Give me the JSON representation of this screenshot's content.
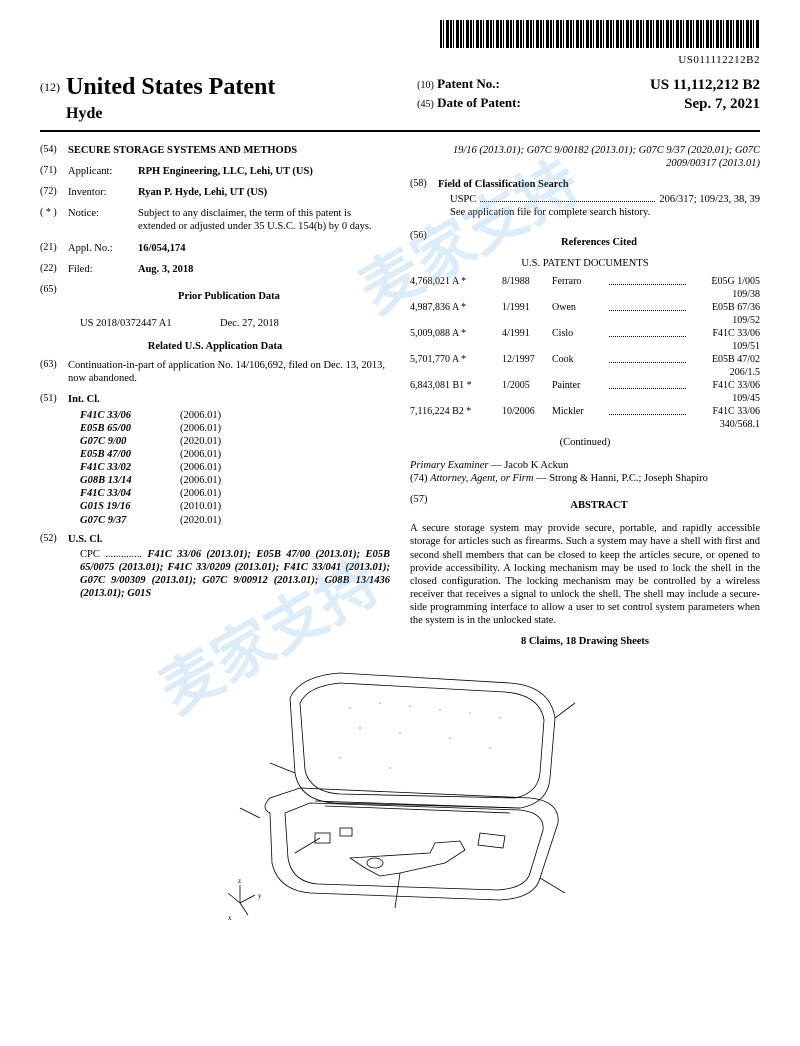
{
  "barcode_number": "US011112212B2",
  "header": {
    "country_num": "(12)",
    "country": "United States Patent",
    "inventor_short": "Hyde",
    "patent_no_num": "(10)",
    "patent_no_label": "Patent No.:",
    "patent_no": "US 11,112,212 B2",
    "date_num": "(45)",
    "date_label": "Date of Patent:",
    "date": "Sep. 7, 2021"
  },
  "title_num": "(54)",
  "title": "SECURE STORAGE SYSTEMS AND METHODS",
  "applicant_num": "(71)",
  "applicant_label": "Applicant:",
  "applicant": "RPH Engineering, LLC, Lehi, UT (US)",
  "inventor_num": "(72)",
  "inventor_label": "Inventor:",
  "inventor": "Ryan P. Hyde, Lehi, UT (US)",
  "notice_num": "( * )",
  "notice_label": "Notice:",
  "notice": "Subject to any disclaimer, the term of this patent is extended or adjusted under 35 U.S.C. 154(b) by 0 days.",
  "appl_no_num": "(21)",
  "appl_no_label": "Appl. No.:",
  "appl_no": "16/054,174",
  "filed_num": "(22)",
  "filed_label": "Filed:",
  "filed": "Aug. 3, 2018",
  "prior_pub_num": "(65)",
  "prior_pub_h": "Prior Publication Data",
  "prior_pub_line": "US 2018/0372447 A1",
  "prior_pub_date": "Dec. 27, 2018",
  "related_h": "Related U.S. Application Data",
  "related_num": "(63)",
  "related": "Continuation-in-part of application No. 14/106,692, filed on Dec. 13, 2013, now abandoned.",
  "intcl_num": "(51)",
  "intcl_label": "Int. Cl.",
  "intcl": [
    {
      "code": "F41C 33/06",
      "ver": "(2006.01)"
    },
    {
      "code": "E05B 65/00",
      "ver": "(2006.01)"
    },
    {
      "code": "G07C 9/00",
      "ver": "(2020.01)"
    },
    {
      "code": "E05B 47/00",
      "ver": "(2006.01)"
    },
    {
      "code": "F41C 33/02",
      "ver": "(2006.01)"
    },
    {
      "code": "G08B 13/14",
      "ver": "(2006.01)"
    },
    {
      "code": "F41C 33/04",
      "ver": "(2006.01)"
    },
    {
      "code": "G01S 19/16",
      "ver": "(2010.01)"
    },
    {
      "code": "G07C 9/37",
      "ver": "(2020.01)"
    }
  ],
  "uscl_num": "(52)",
  "uscl_label": "U.S. Cl.",
  "cpc_label": "CPC",
  "cpc": "F41C 33/06 (2013.01); E05B 47/00 (2013.01); E05B 65/0075 (2013.01); F41C 33/0209 (2013.01); F41C 33/041 (2013.01); G07C 9/00309 (2013.01); G07C 9/00912 (2013.01); G08B 13/1436 (2013.01); G01S",
  "cpc_cont": "19/16 (2013.01); G07C 9/00182 (2013.01); G07C 9/37 (2020.01); G07C 2009/00317 (2013.01)",
  "fcs_num": "(58)",
  "fcs_label": "Field of Classification Search",
  "fcs_uspc_label": "USPC",
  "fcs_uspc": "206/317; 109/23, 38, 39",
  "fcs_note": "See application file for complete search history.",
  "refs_num": "(56)",
  "refs_h": "References Cited",
  "refs_sub": "U.S. PATENT DOCUMENTS",
  "refs": [
    {
      "pat": "4,768,021 A *",
      "date": "8/1988",
      "name": "Ferraro",
      "cls": "E05G 1/005",
      "sub": "109/38"
    },
    {
      "pat": "4,987,836 A *",
      "date": "1/1991",
      "name": "Owen",
      "cls": "E05B 67/36",
      "sub": "109/52"
    },
    {
      "pat": "5,009,088 A *",
      "date": "4/1991",
      "name": "Cislo",
      "cls": "F41C 33/06",
      "sub": "109/51"
    },
    {
      "pat": "5,701,770 A *",
      "date": "12/1997",
      "name": "Cook",
      "cls": "E05B 47/02",
      "sub": "206/1.5"
    },
    {
      "pat": "6,843,081 B1 *",
      "date": "1/2005",
      "name": "Painter",
      "cls": "F41C 33/06",
      "sub": "109/45"
    },
    {
      "pat": "7,116,224 B2 *",
      "date": "10/2006",
      "name": "Mickler",
      "cls": "F41C 33/06",
      "sub": "340/568.1"
    }
  ],
  "continued": "(Continued)",
  "examiner_label": "Primary Examiner",
  "examiner": "Jacob K Ackun",
  "attorney_num": "(74)",
  "attorney_label": "Attorney, Agent, or Firm",
  "attorney": "Strong & Hanni, P.C.; Joseph Shapiro",
  "abstract_num": "(57)",
  "abstract_h": "ABSTRACT",
  "abstract": "A secure storage system may provide secure, portable, and rapidly accessible storage for articles such as firearms. Such a system may have a shell with first and second shell members that can be closed to keep the articles secure, or opened to provide accessibility. A locking mechanism may be used to lock the shell in the closed configuration. The locking mechanism may be controlled by a wireless receiver that receives a signal to unlock the shell. The shell may include a secure-side programming interface to allow a user to set control system parameters when the system is in the unlocked state.",
  "claims": "8 Claims, 18 Drawing Sheets"
}
